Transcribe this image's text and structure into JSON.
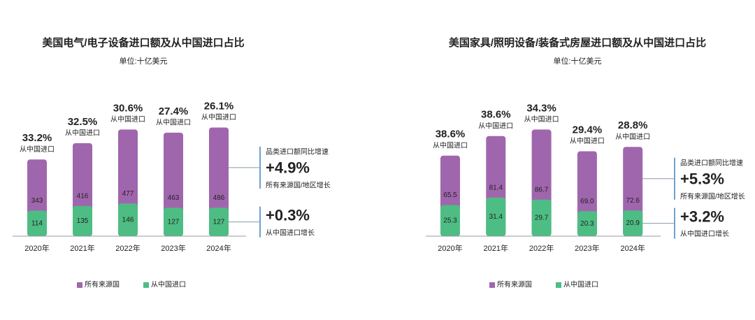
{
  "chart_data": [
    {
      "type": "bar",
      "overlay": true,
      "title": "美国电气/电子设备进口额及从中国进口占比",
      "subtitle": "单位:十亿美元",
      "categories": [
        "2020年",
        "2021年",
        "2022年",
        "2023年",
        "2024年"
      ],
      "series": [
        {
          "name": "所有来源国",
          "color": "#a066ad",
          "values": [
            343,
            416,
            477,
            463,
            486
          ]
        },
        {
          "name": "从中国进口",
          "color": "#4dbd84",
          "values": [
            114,
            135,
            146,
            127,
            127
          ]
        }
      ],
      "share": {
        "label": "从中国进口",
        "values": [
          33.2,
          32.5,
          30.6,
          27.4,
          26.1
        ],
        "value_labels": [
          "33.2%",
          "32.5%",
          "30.6%",
          "27.4%",
          "26.1%"
        ]
      },
      "growth": {
        "title": "品类进口额同比增速",
        "total": {
          "value": 4.9,
          "label": "+4.9%",
          "caption": "所有来源国/地区增长"
        },
        "china": {
          "value": 0.3,
          "label": "+0.3%",
          "caption": "从中国进口增长"
        }
      },
      "ylim": [
        0,
        550
      ]
    },
    {
      "type": "bar",
      "overlay": true,
      "title": "美国家具/照明设备/装备式房屋进口额及从中国进口占比",
      "subtitle": "单位:十亿美元",
      "categories": [
        "2020年",
        "2021年",
        "2022年",
        "2023年",
        "2024年"
      ],
      "series": [
        {
          "name": "所有来源国",
          "color": "#a066ad",
          "values": [
            65.5,
            81.4,
            86.7,
            69.0,
            72.6
          ],
          "value_labels": [
            "65.5",
            "81.4",
            "86.7",
            "69.0",
            "72.6"
          ]
        },
        {
          "name": "从中国进口",
          "color": "#4dbd84",
          "values": [
            25.3,
            31.4,
            29.7,
            20.3,
            20.9
          ]
        }
      ],
      "share": {
        "label": "从中国进口",
        "values": [
          38.6,
          38.6,
          34.3,
          29.4,
          28.8
        ],
        "value_labels": [
          "38.6%",
          "38.6%",
          "34.3%",
          "29.4%",
          "28.8%"
        ]
      },
      "growth": {
        "title": "品类进口额同比增速",
        "total": {
          "value": 5.3,
          "label": "+5.3%",
          "caption": "所有来源国/地区增长"
        },
        "china": {
          "value": 3.2,
          "label": "+3.2%",
          "caption": "从中国进口增长"
        }
      },
      "ylim": [
        0,
        100
      ]
    }
  ]
}
